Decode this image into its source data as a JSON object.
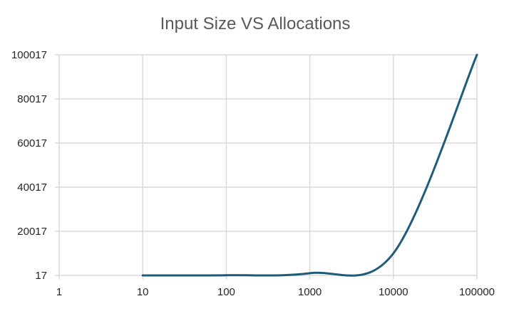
{
  "chart_data": {
    "type": "line",
    "title": "Input Size VS Allocations",
    "xlabel": "",
    "ylabel": "",
    "x_scale": "log",
    "x_ticks": [
      1,
      10,
      100,
      1000,
      10000,
      100000
    ],
    "x_tick_labels": [
      "1",
      "10",
      "100",
      "1000",
      "10000",
      "100000"
    ],
    "y_ticks": [
      17,
      20017,
      40017,
      60017,
      80017,
      100017
    ],
    "y_tick_labels": [
      "17",
      "20017",
      "40017",
      "60017",
      "80017",
      "100017"
    ],
    "xlim": [
      1,
      100000
    ],
    "ylim": [
      17,
      100017
    ],
    "grid": true,
    "legend": "none",
    "smooth": true,
    "series": [
      {
        "color": "#1f5c7a",
        "x": [
          10,
          100,
          1000,
          10000,
          100000
        ],
        "y": [
          17,
          117,
          1017,
          10017,
          100017
        ]
      }
    ]
  }
}
